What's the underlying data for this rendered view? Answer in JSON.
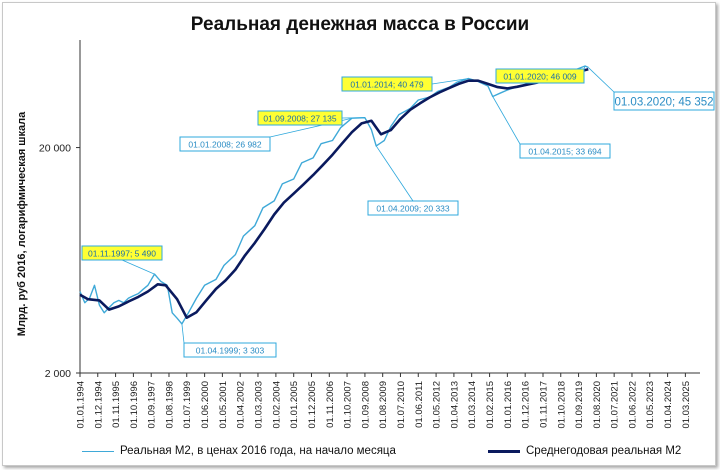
{
  "chart_data": {
    "type": "line",
    "title": "Реальная денежная масса в России",
    "ylabel": "Млрд. руб 2016, логарифмическая шкала",
    "xlabel": "",
    "yscale": "log",
    "ylim": [
      2000,
      60000
    ],
    "xlim": [
      "1994-01-01",
      "2025-12-01"
    ],
    "y_ticks": [
      {
        "value": 2000,
        "label": "2 000"
      },
      {
        "value": 20000,
        "label": "20 000"
      }
    ],
    "x_tick_labels": [
      "01.01.1994",
      "01.12.1994",
      "01.11.1995",
      "01.10.1996",
      "01.09.1997",
      "01.08.1998",
      "01.07.1999",
      "01.06.2000",
      "01.05.2001",
      "01.04.2002",
      "01.03.2003",
      "01.02.2004",
      "01.01.2005",
      "01.12.2005",
      "01.11.2006",
      "01.10.2007",
      "01.09.2008",
      "01.08.2009",
      "01.07.2010",
      "01.06.2011",
      "01.05.2012",
      "01.04.2013",
      "01.03.2014",
      "01.02.2015",
      "01.01.2016",
      "01.12.2016",
      "01.11.2017",
      "01.10.2018",
      "01.09.2019",
      "01.08.2020",
      "01.07.2021",
      "01.06.2022",
      "01.05.2023",
      "01.04.2024",
      "01.03.2025"
    ],
    "grid": false,
    "legend_position": "bottom",
    "series": [
      {
        "name": "Реальная М2, в ценах 2016 года, на начало месяца",
        "color": "#3fa9d8",
        "x": [
          "1994-01-01",
          "1994-04-01",
          "1994-07-01",
          "1994-10-01",
          "1995-01-01",
          "1995-04-01",
          "1995-07-01",
          "1995-10-01",
          "1996-01-01",
          "1996-04-01",
          "1996-07-01",
          "1996-10-01",
          "1997-01-01",
          "1997-04-01",
          "1997-07-01",
          "1997-11-01",
          "1998-03-01",
          "1998-07-01",
          "1998-10-01",
          "1999-01-01",
          "1999-04-01",
          "1999-08-01",
          "2000-01-01",
          "2000-06-01",
          "2001-01-01",
          "2001-06-01",
          "2002-01-01",
          "2002-06-01",
          "2003-01-01",
          "2003-06-01",
          "2004-01-01",
          "2004-06-01",
          "2005-01-01",
          "2005-06-01",
          "2006-01-01",
          "2006-06-01",
          "2007-01-01",
          "2007-06-01",
          "2008-01-01",
          "2008-09-01",
          "2009-01-01",
          "2009-04-01",
          "2009-09-01",
          "2010-01-01",
          "2010-06-01",
          "2011-01-01",
          "2011-06-01",
          "2012-01-01",
          "2012-06-01",
          "2013-01-01",
          "2013-06-01",
          "2014-01-01",
          "2014-06-01",
          "2015-01-01",
          "2015-04-01",
          "2015-09-01",
          "2016-01-01",
          "2016-06-01",
          "2017-01-01",
          "2017-06-01",
          "2018-01-01",
          "2018-06-01",
          "2019-01-01",
          "2019-06-01",
          "2020-01-01",
          "2020-03-01"
        ],
        "values": [
          4600,
          4100,
          4300,
          4900,
          4000,
          3700,
          3900,
          4100,
          4200,
          4100,
          4300,
          4400,
          4500,
          4700,
          4900,
          5490,
          5100,
          4900,
          3700,
          3500,
          3303,
          3700,
          4300,
          4900,
          5200,
          6000,
          6700,
          8100,
          9000,
          10800,
          11600,
          13800,
          14500,
          17100,
          18000,
          20800,
          21500,
          24500,
          26982,
          27135,
          24000,
          20333,
          21500,
          24800,
          28000,
          29800,
          32500,
          33500,
          35500,
          37000,
          39000,
          40479,
          39500,
          37500,
          33694,
          35000,
          36000,
          37000,
          38000,
          39000,
          40000,
          41500,
          42000,
          44000,
          46009,
          45352
        ]
      },
      {
        "name": "Среднегодовая реальная М2",
        "color": "#0a1a5e",
        "x": [
          "1994-01-01",
          "1994-06-01",
          "1995-01-01",
          "1995-07-01",
          "1996-01-01",
          "1996-07-01",
          "1997-01-01",
          "1997-07-01",
          "1998-01-01",
          "1998-06-01",
          "1999-01-01",
          "1999-07-01",
          "2000-01-01",
          "2000-07-01",
          "2001-01-01",
          "2001-07-01",
          "2002-01-01",
          "2002-07-01",
          "2003-01-01",
          "2003-07-01",
          "2004-01-01",
          "2004-07-01",
          "2005-01-01",
          "2005-07-01",
          "2006-01-01",
          "2006-07-01",
          "2007-01-01",
          "2007-07-01",
          "2008-01-01",
          "2008-07-01",
          "2009-01-01",
          "2009-07-01",
          "2010-01-01",
          "2010-07-01",
          "2011-01-01",
          "2011-07-01",
          "2012-01-01",
          "2012-07-01",
          "2013-01-01",
          "2013-07-01",
          "2014-01-01",
          "2014-07-01",
          "2015-01-01",
          "2015-07-01",
          "2016-01-01",
          "2016-07-01",
          "2017-01-01",
          "2017-07-01",
          "2018-01-01",
          "2018-07-01",
          "2019-01-01",
          "2019-07-01",
          "2020-03-01"
        ],
        "values": [
          4450,
          4250,
          4200,
          3820,
          3950,
          4150,
          4350,
          4600,
          4950,
          4900,
          4250,
          3520,
          3720,
          4200,
          4720,
          5150,
          5750,
          6650,
          7550,
          8700,
          10100,
          11400,
          12500,
          13700,
          15100,
          16700,
          18600,
          20900,
          23400,
          25600,
          26300,
          22900,
          23900,
          26800,
          29400,
          31400,
          33400,
          35100,
          36700,
          38300,
          39600,
          39600,
          38300,
          37100,
          36600,
          37200,
          38000,
          38800,
          39700,
          40700,
          41800,
          43000,
          44500
        ]
      }
    ],
    "annotations": [
      {
        "label": "01.11.1997; 5 490",
        "x": "1997-11-01",
        "y": 5490,
        "style": "highlight"
      },
      {
        "label": "01.04.1999; 3 303",
        "x": "1999-04-01",
        "y": 3303,
        "style": "plain"
      },
      {
        "label": "01.01.2008; 26 982",
        "x": "2008-01-01",
        "y": 26982,
        "style": "plain"
      },
      {
        "label": "01.09.2008; 27 135",
        "x": "2008-09-01",
        "y": 27135,
        "style": "highlight"
      },
      {
        "label": "01.04.2009; 20 333",
        "x": "2009-04-01",
        "y": 20333,
        "style": "plain"
      },
      {
        "label": "01.01.2014; 40 479",
        "x": "2014-01-01",
        "y": 40479,
        "style": "highlight"
      },
      {
        "label": "01.04.2015; 33 694",
        "x": "2015-04-01",
        "y": 33694,
        "style": "plain"
      },
      {
        "label": "01.01.2020; 46 009",
        "x": "2020-01-01",
        "y": 46009,
        "style": "highlight"
      },
      {
        "label": "01.03.2020; 45 352",
        "x": "2020-03-01",
        "y": 45352,
        "style": "plain-large"
      }
    ]
  },
  "colors": {
    "highlight_fill": "#ffff33",
    "highlight_border": "#2fa8dc",
    "plain_text": "#2a8cc4",
    "axis": "#333333"
  }
}
